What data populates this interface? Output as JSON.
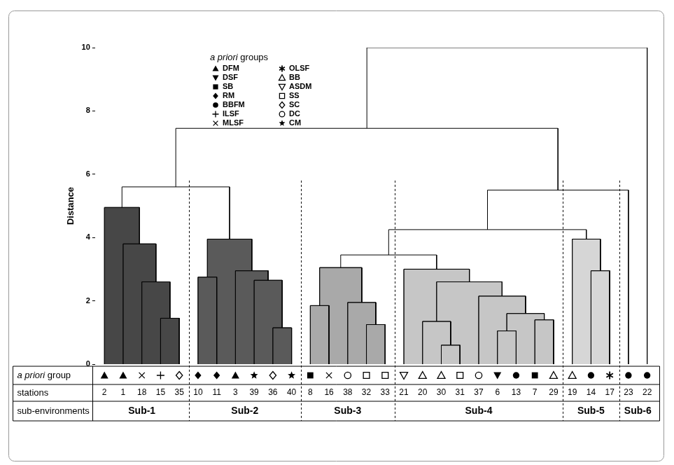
{
  "chart_data": {
    "type": "dendrogram",
    "y_label": "Distance",
    "ylim": [
      0,
      10
    ],
    "yticks": [
      0,
      2,
      4,
      6,
      8,
      10
    ],
    "legend_title": "a priori groups",
    "groups": [
      {
        "name": "DFM",
        "marker": "triangle"
      },
      {
        "name": "DSF",
        "marker": "triangle-down"
      },
      {
        "name": "SB",
        "marker": "square"
      },
      {
        "name": "RM",
        "marker": "diamond"
      },
      {
        "name": "BBFM",
        "marker": "circle"
      },
      {
        "name": "ILSF",
        "marker": "cross"
      },
      {
        "name": "MLSF",
        "marker": "x"
      },
      {
        "name": "OLSF",
        "marker": "asterisk"
      },
      {
        "name": "BB",
        "marker": "triangle-open"
      },
      {
        "name": "ASDM",
        "marker": "triangle-down-open"
      },
      {
        "name": "SS",
        "marker": "square-open"
      },
      {
        "name": "SC",
        "marker": "diamond-open"
      },
      {
        "name": "DC",
        "marker": "circle-open"
      },
      {
        "name": "CM",
        "marker": "star"
      }
    ],
    "row_labels": [
      "a priori group",
      "stations",
      "sub-environments"
    ],
    "leaves": [
      {
        "station": 2,
        "group": "DFM",
        "sub_environment": "Sub-1"
      },
      {
        "station": 1,
        "group": "DFM",
        "sub_environment": "Sub-1"
      },
      {
        "station": 18,
        "group": "MLSF",
        "sub_environment": "Sub-1"
      },
      {
        "station": 15,
        "group": "ILSF",
        "sub_environment": "Sub-1"
      },
      {
        "station": 35,
        "group": "SC",
        "sub_environment": "Sub-1"
      },
      {
        "station": 10,
        "group": "RM",
        "sub_environment": "Sub-2"
      },
      {
        "station": 11,
        "group": "RM",
        "sub_environment": "Sub-2"
      },
      {
        "station": 3,
        "group": "DFM",
        "sub_environment": "Sub-2"
      },
      {
        "station": 39,
        "group": "CM",
        "sub_environment": "Sub-2"
      },
      {
        "station": 36,
        "group": "SC",
        "sub_environment": "Sub-2"
      },
      {
        "station": 40,
        "group": "CM",
        "sub_environment": "Sub-2"
      },
      {
        "station": 8,
        "group": "SB",
        "sub_environment": "Sub-3"
      },
      {
        "station": 16,
        "group": "MLSF",
        "sub_environment": "Sub-3"
      },
      {
        "station": 38,
        "group": "DC",
        "sub_environment": "Sub-3"
      },
      {
        "station": 32,
        "group": "SS",
        "sub_environment": "Sub-3"
      },
      {
        "station": 33,
        "group": "SS",
        "sub_environment": "Sub-3"
      },
      {
        "station": 21,
        "group": "ASDM",
        "sub_environment": "Sub-4"
      },
      {
        "station": 20,
        "group": "BB",
        "sub_environment": "Sub-4"
      },
      {
        "station": 30,
        "group": "BB",
        "sub_environment": "Sub-4"
      },
      {
        "station": 31,
        "group": "SS",
        "sub_environment": "Sub-4"
      },
      {
        "station": 37,
        "group": "DC",
        "sub_environment": "Sub-4"
      },
      {
        "station": 6,
        "group": "DSF",
        "sub_environment": "Sub-4"
      },
      {
        "station": 13,
        "group": "BBFM",
        "sub_environment": "Sub-4"
      },
      {
        "station": 7,
        "group": "SB",
        "sub_environment": "Sub-4"
      },
      {
        "station": 29,
        "group": "BB",
        "sub_environment": "Sub-4"
      },
      {
        "station": 19,
        "group": "BB",
        "sub_environment": "Sub-5"
      },
      {
        "station": 14,
        "group": "BBFM",
        "sub_environment": "Sub-5"
      },
      {
        "station": 17,
        "group": "OLSF",
        "sub_environment": "Sub-5"
      },
      {
        "station": 23,
        "group": "BBFM",
        "sub_environment": "Sub-6"
      },
      {
        "station": 22,
        "group": "BBFM",
        "sub_environment": "Sub-6"
      }
    ],
    "merges": [
      {
        "children": [
          3,
          4
        ],
        "height": 1.45
      },
      {
        "children": [
          2,
          30
        ],
        "height": 2.6
      },
      {
        "children": [
          1,
          31
        ],
        "height": 3.8
      },
      {
        "children": [
          0,
          32
        ],
        "height": 4.95
      },
      {
        "children": [
          9,
          10
        ],
        "height": 1.15
      },
      {
        "children": [
          8,
          34
        ],
        "height": 2.65
      },
      {
        "children": [
          7,
          35
        ],
        "height": 2.95
      },
      {
        "children": [
          5,
          6
        ],
        "height": 2.75
      },
      {
        "children": [
          37,
          36
        ],
        "height": 3.95
      },
      {
        "children": [
          33,
          38
        ],
        "height": 5.6
      },
      {
        "children": [
          14,
          15
        ],
        "height": 1.25
      },
      {
        "children": [
          13,
          40
        ],
        "height": 1.95
      },
      {
        "children": [
          11,
          12
        ],
        "height": 1.85
      },
      {
        "children": [
          42,
          41
        ],
        "height": 3.05
      },
      {
        "children": [
          18,
          19
        ],
        "height": 0.6
      },
      {
        "children": [
          17,
          44
        ],
        "height": 1.35
      },
      {
        "children": [
          21,
          22
        ],
        "height": 1.05
      },
      {
        "children": [
          23,
          24
        ],
        "height": 1.4
      },
      {
        "children": [
          46,
          47
        ],
        "height": 1.6
      },
      {
        "children": [
          20,
          48
        ],
        "height": 2.15
      },
      {
        "children": [
          45,
          49
        ],
        "height": 2.6
      },
      {
        "children": [
          16,
          50
        ],
        "height": 3.0
      },
      {
        "children": [
          43,
          51
        ],
        "height": 3.45
      },
      {
        "children": [
          26,
          27
        ],
        "height": 2.95
      },
      {
        "children": [
          25,
          53
        ],
        "height": 3.95
      },
      {
        "children": [
          52,
          54
        ],
        "height": 4.25
      },
      {
        "children": [
          55,
          28
        ],
        "height": 5.5
      },
      {
        "children": [
          39,
          56
        ],
        "height": 7.45
      },
      {
        "children": [
          57,
          29
        ],
        "height": 10
      }
    ],
    "sub_environments": [
      {
        "name": "Sub-1",
        "color": "#474747"
      },
      {
        "name": "Sub-2",
        "color": "#5a5a5a"
      },
      {
        "name": "Sub-3",
        "color": "#a9a9a9"
      },
      {
        "name": "Sub-4",
        "color": "#c6c6c6"
      },
      {
        "name": "Sub-5",
        "color": "#d6d6d6"
      },
      {
        "name": "Sub-6"
      }
    ]
  }
}
